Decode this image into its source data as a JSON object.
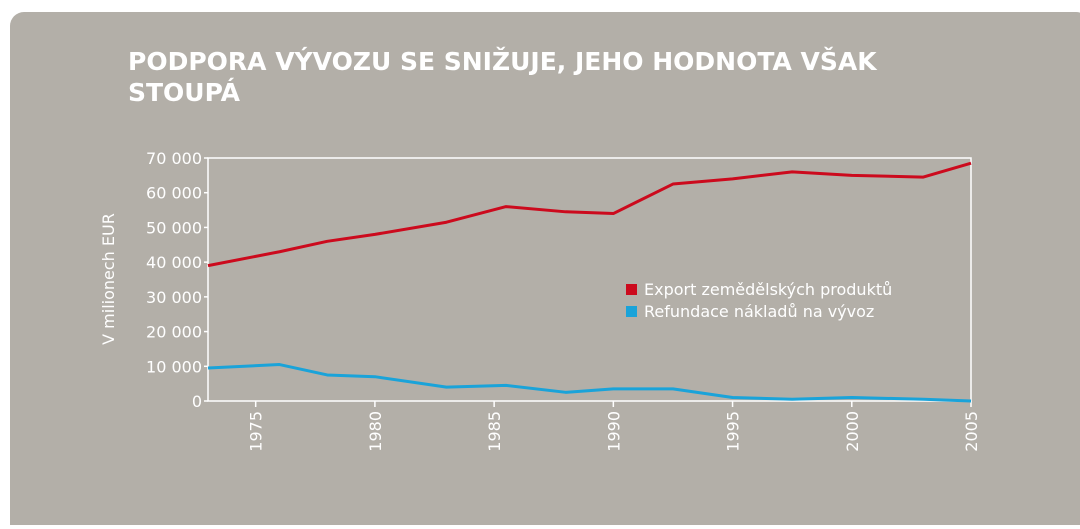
{
  "chart_data": {
    "type": "line",
    "title_lines": [
      "PODPORA VÝVOZU SE SNIŽUJE, JEHO HODNOTA VŠAK",
      "STOUPÁ"
    ],
    "ylabel": "V milionech EUR",
    "x": [
      1973,
      1976,
      1978,
      1980,
      1983,
      1985.5,
      1988,
      1990,
      1992.5,
      1995,
      1997.5,
      2000,
      2003,
      2005
    ],
    "series": [
      {
        "name": "Export zemědělských produktů",
        "color": "#cc0a1d",
        "values": [
          39000,
          43000,
          46000,
          48000,
          51500,
          56000,
          54500,
          54000,
          62500,
          64000,
          66000,
          65000,
          64500,
          68500
        ]
      },
      {
        "name": "Refundace nákladů na vývoz",
        "color": "#1aa3d9",
        "values": [
          9500,
          10500,
          7500,
          7000,
          4000,
          4500,
          2500,
          3500,
          3500,
          1000,
          500,
          1000,
          500,
          0
        ]
      }
    ],
    "xlim": [
      1973,
      2005
    ],
    "xticks": [
      1975,
      1980,
      1985,
      1990,
      1995,
      2000,
      2005
    ],
    "ylim": [
      0,
      70000
    ],
    "yticks": [
      0,
      {
        "value": 10000,
        "label": "10 000"
      },
      {
        "value": 20000,
        "label": "20 000"
      },
      {
        "value": 30000,
        "label": "30 000"
      },
      {
        "value": 40000,
        "label": "40 000"
      },
      {
        "value": 50000,
        "label": "50 000"
      },
      {
        "value": 60000,
        "label": "60 000"
      },
      {
        "value": 70000,
        "label": "70 000"
      }
    ]
  }
}
